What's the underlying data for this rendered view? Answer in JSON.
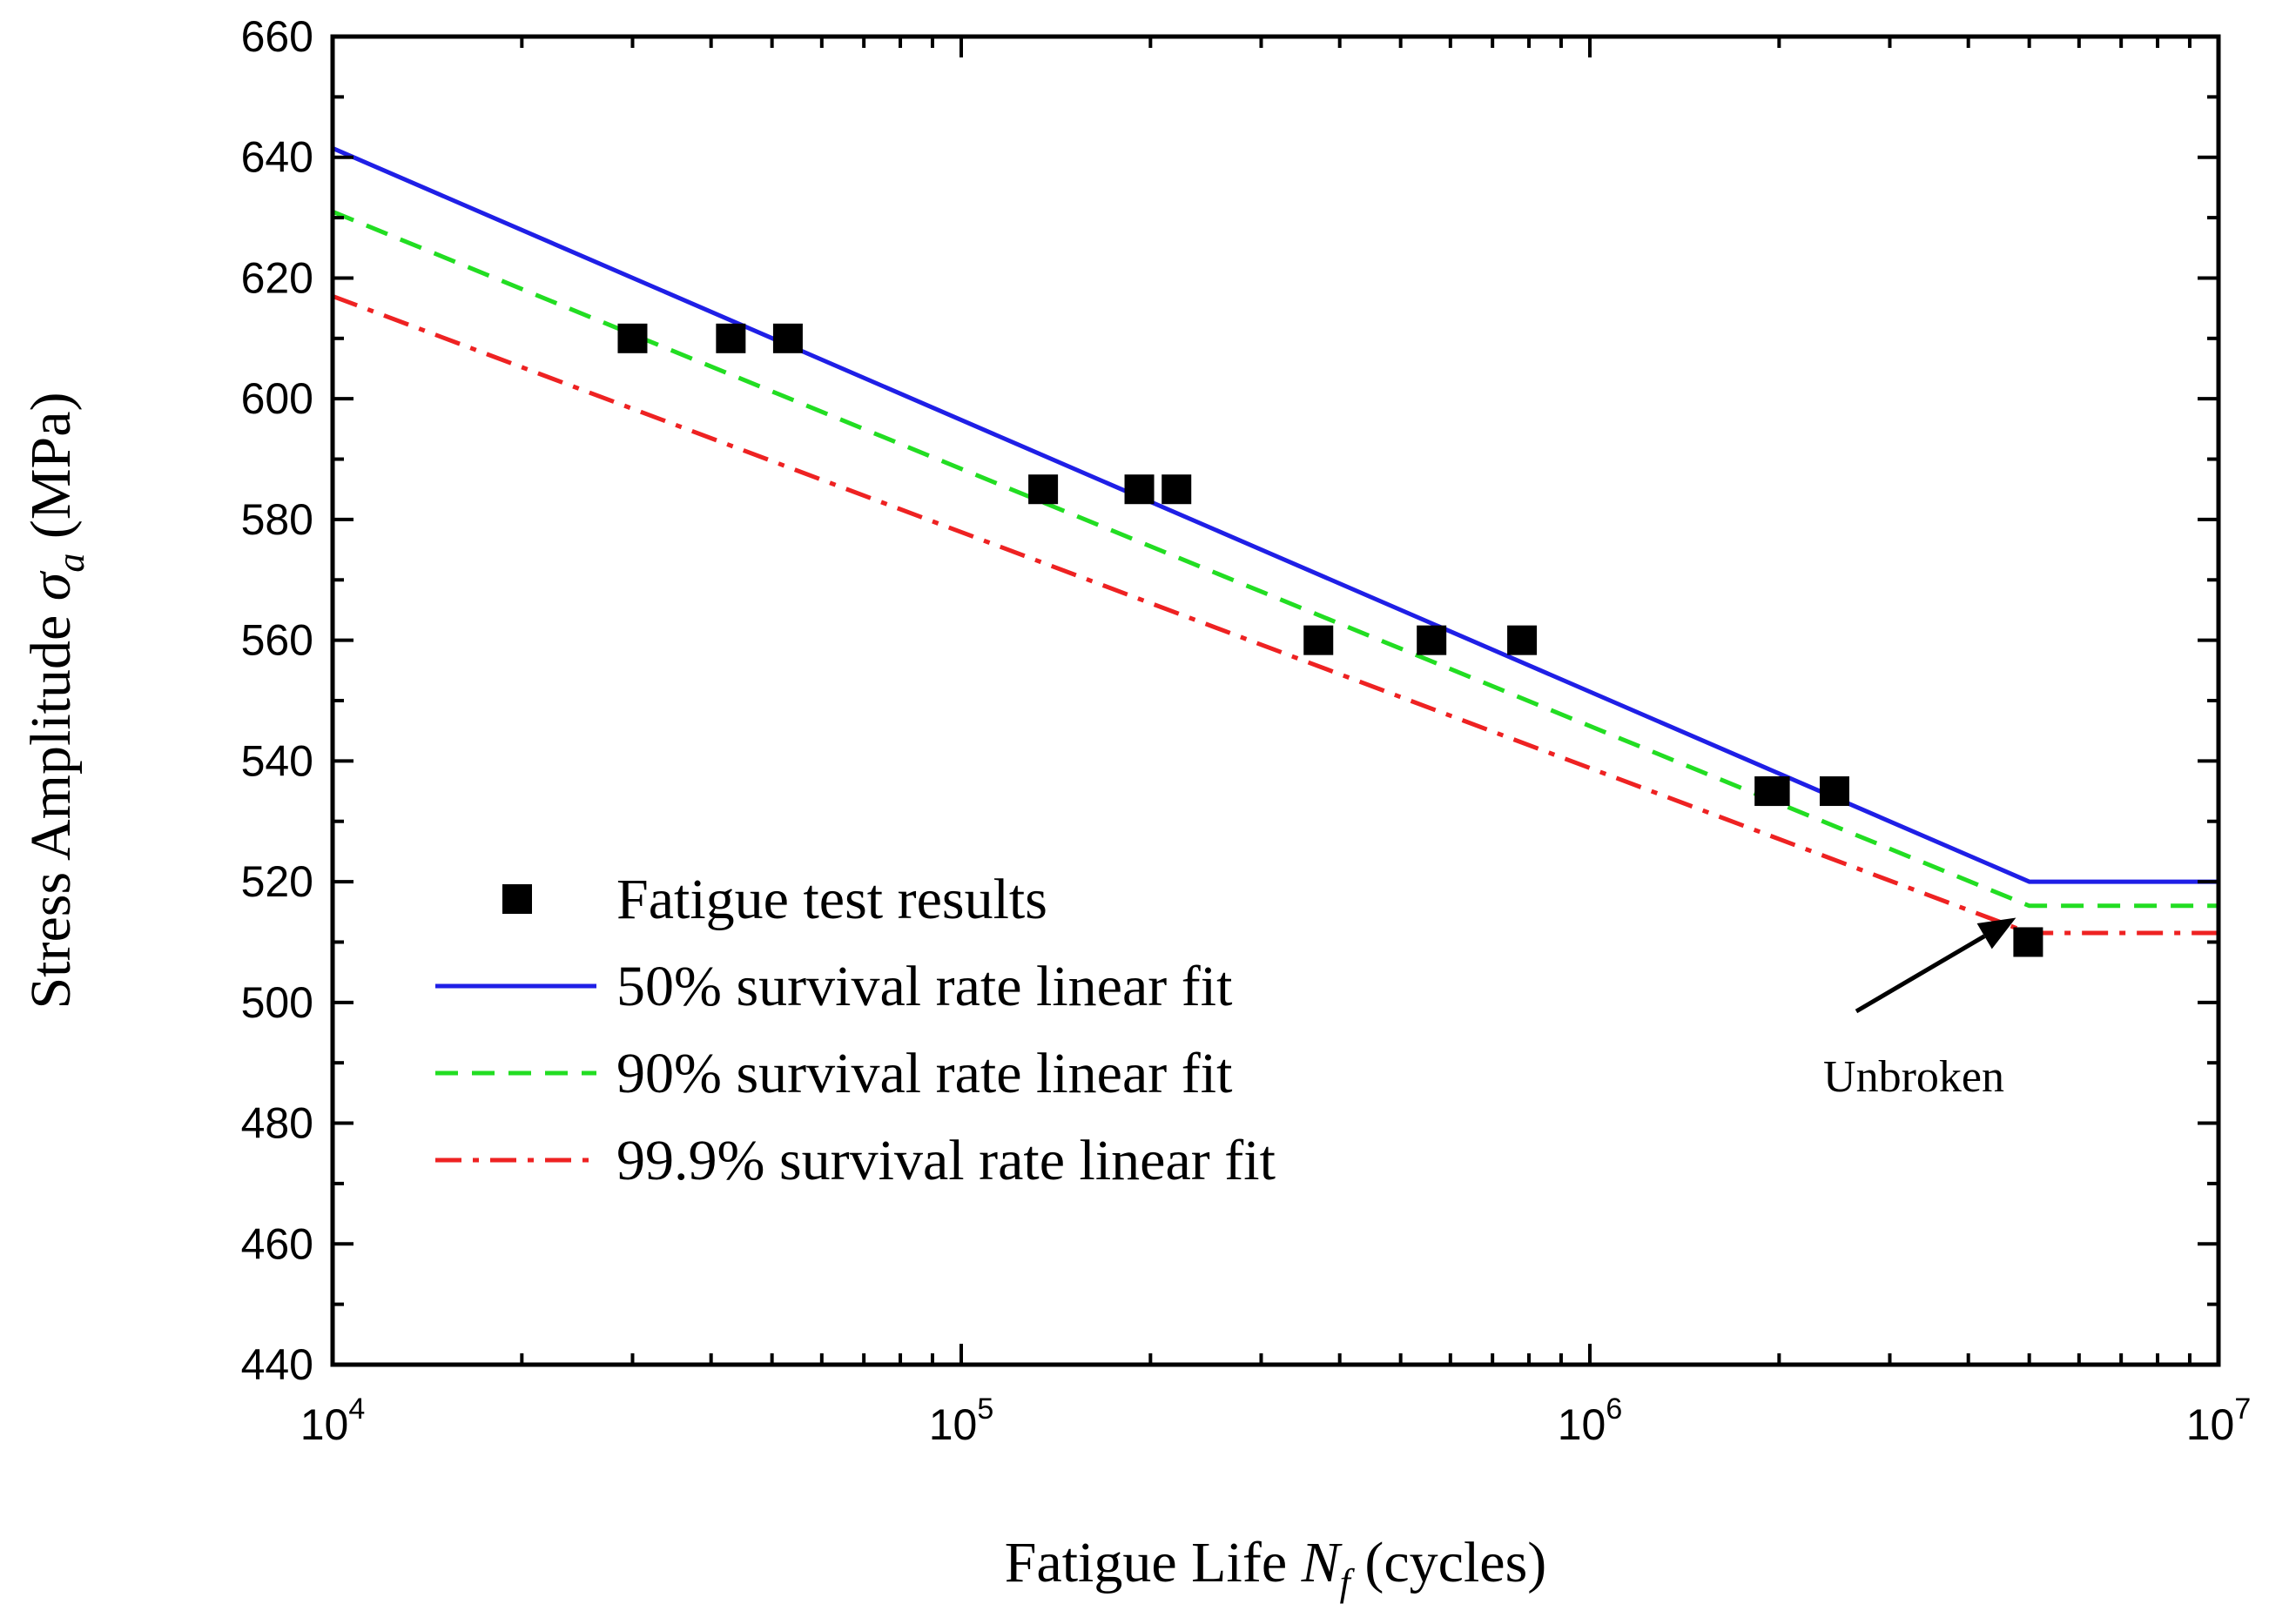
{
  "chart_data": {
    "type": "scatter",
    "title": "",
    "xlabel": {
      "prefix": "Fatigue Life ",
      "symbol": "N",
      "subscript": "f",
      "suffix": " (cycles)"
    },
    "ylabel": {
      "prefix": "Stress Amplitude ",
      "symbol": "σ",
      "subscript": "a",
      "suffix": " (MPa)"
    },
    "xscale": "log",
    "xlim": [
      10000,
      10000000
    ],
    "ylim": [
      440,
      660
    ],
    "x_ticks": [
      {
        "value": 10000,
        "base": "10",
        "exp": "4"
      },
      {
        "value": 100000,
        "base": "10",
        "exp": "5"
      },
      {
        "value": 1000000,
        "base": "10",
        "exp": "6"
      },
      {
        "value": 10000000,
        "base": "10",
        "exp": "7"
      }
    ],
    "y_ticks": [
      "440",
      "460",
      "480",
      "500",
      "520",
      "540",
      "560",
      "580",
      "600",
      "620",
      "640",
      "660"
    ],
    "legend_position": "lower-left",
    "grid": false,
    "series": [
      {
        "name": "Fatigue test results",
        "kind": "scatter",
        "marker": "square",
        "color": "#000000",
        "points": [
          [
            30000,
            610
          ],
          [
            43000,
            610
          ],
          [
            53000,
            610
          ],
          [
            135000,
            585
          ],
          [
            192000,
            585
          ],
          [
            220000,
            585
          ],
          [
            370000,
            560
          ],
          [
            560000,
            560
          ],
          [
            780000,
            560
          ],
          [
            1930000,
            535
          ],
          [
            1970000,
            535
          ],
          [
            2450000,
            535
          ],
          [
            4980000,
            510
          ]
        ]
      },
      {
        "name": "50% survival rate linear fit",
        "kind": "line",
        "style": "solid",
        "color": "#1f1fe6",
        "points": [
          [
            10000,
            641.5
          ],
          [
            5000000,
            520
          ],
          [
            10000000,
            520
          ]
        ]
      },
      {
        "name": "90% survival rate linear fit",
        "kind": "line",
        "style": "dashed",
        "color": "#22dd22",
        "points": [
          [
            10000,
            631
          ],
          [
            5000000,
            516
          ],
          [
            10000000,
            516
          ]
        ]
      },
      {
        "name": "99.9% survival rate linear fit",
        "kind": "line",
        "style": "dashdot",
        "color": "#ee2222",
        "points": [
          [
            10000,
            617
          ],
          [
            5000000,
            511.5
          ],
          [
            10000000,
            511.5
          ]
        ]
      }
    ],
    "annotations": [
      {
        "text": "Unbroken",
        "arrow_to": [
          4980000,
          510
        ]
      }
    ]
  }
}
